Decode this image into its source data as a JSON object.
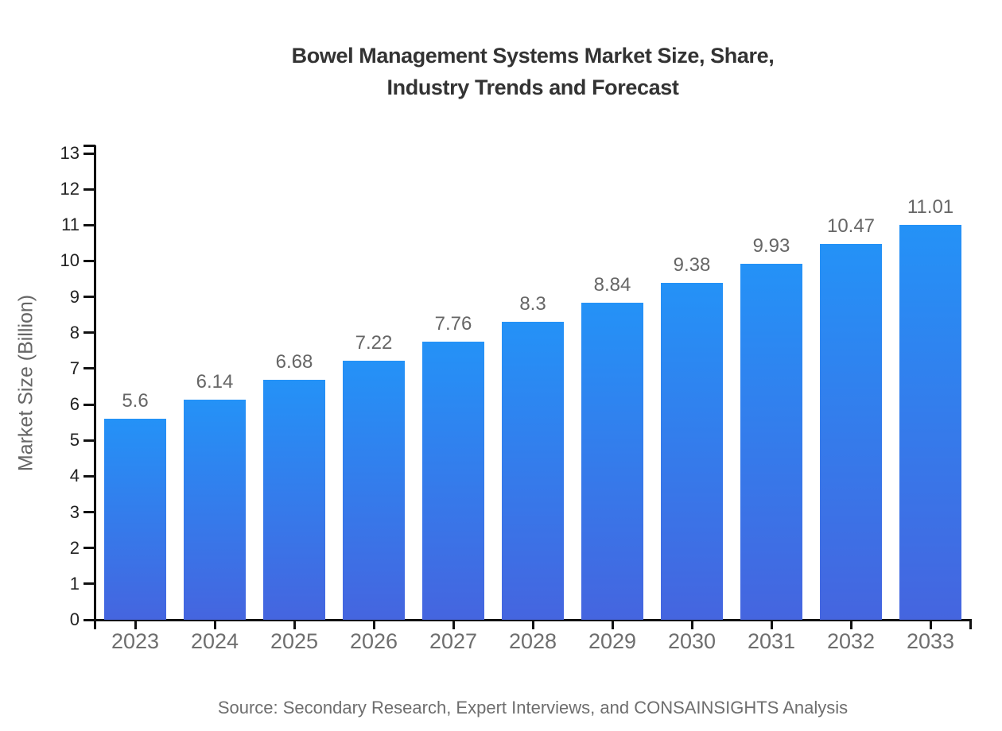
{
  "title": {
    "line1": "Bowel Management Systems Market Size, Share,",
    "line2": "Industry Trends and Forecast"
  },
  "source": "Source: Secondary Research, Expert Interviews, and CONSAINSIGHTS Analysis",
  "colors": {
    "background": "#ffffff",
    "title_text": "#333333",
    "axis_line": "#111111",
    "ytick_label": "#222222",
    "xtick_label": "#6e6e6e",
    "value_label": "#666666",
    "source_text": "#6e6e6e",
    "bar_gradient_top": "#2492f7",
    "bar_gradient_bottom": "#4565df"
  },
  "chart_data": {
    "type": "bar",
    "title": "Bowel Management Systems Market Size, Share, Industry Trends and Forecast",
    "xlabel": "",
    "ylabel": "Market Size (Billion)",
    "categories": [
      "2023",
      "2024",
      "2025",
      "2026",
      "2027",
      "2028",
      "2029",
      "2030",
      "2031",
      "2032",
      "2033"
    ],
    "values": [
      5.6,
      6.14,
      6.68,
      7.22,
      7.76,
      8.3,
      8.84,
      9.38,
      9.93,
      10.47,
      11.01
    ],
    "value_labels": [
      "5.6",
      "6.14",
      "6.68",
      "7.22",
      "7.76",
      "8.3",
      "8.84",
      "9.38",
      "9.93",
      "10.47",
      "11.01"
    ],
    "ylim": [
      0,
      13
    ],
    "yticks": [
      0,
      1,
      2,
      3,
      4,
      5,
      6,
      7,
      8,
      9,
      10,
      11,
      12,
      13
    ],
    "grid": false,
    "legend": false,
    "bar_orientation": "vertical"
  }
}
